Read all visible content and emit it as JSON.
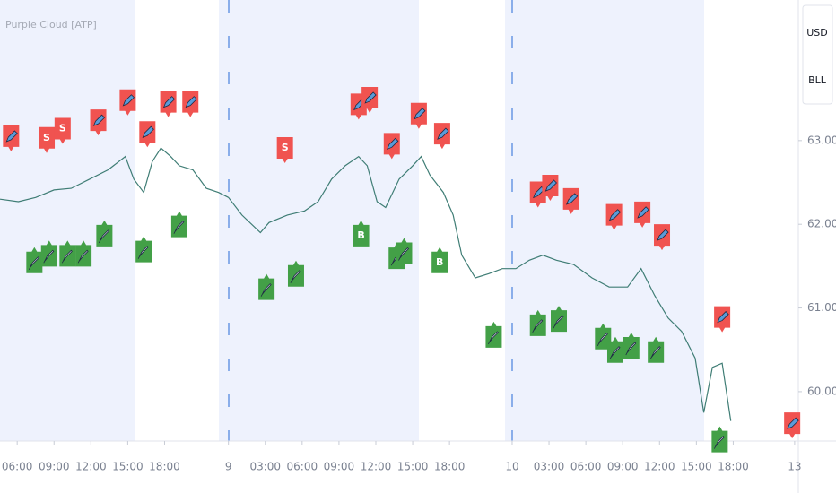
{
  "chart_data": {
    "type": "line",
    "title": "Purple Cloud [ATP]",
    "currency": "USD",
    "unit": "BLL",
    "color": "#3f7d75",
    "x": [
      4.6,
      6.1,
      7.5,
      9.0,
      10.4,
      11.9,
      13.4,
      14.8,
      15.5,
      16.3,
      17.0,
      17.7,
      18.5,
      19.2,
      20.3,
      21.4,
      22.4,
      23.2,
      24.3,
      25.8,
      26.5,
      28.0,
      29.4,
      30.5,
      31.6,
      32.7,
      33.8,
      34.5,
      35.3,
      36.0,
      37.1,
      38.2,
      38.9,
      39.6,
      40.7,
      41.5,
      42.2,
      43.3,
      44.4,
      45.5,
      46.6,
      47.7,
      48.8,
      49.9,
      51.3,
      52.8,
      54.2,
      55.7,
      56.8,
      57.9,
      59.0,
      60.1,
      61.2,
      61.9,
      62.6,
      63.4,
      64.1
    ],
    "values": [
      62.3,
      62.27,
      62.32,
      62.41,
      62.43,
      62.54,
      62.65,
      62.81,
      62.54,
      62.38,
      62.75,
      62.91,
      62.81,
      62.7,
      62.65,
      62.43,
      62.38,
      62.32,
      62.11,
      61.9,
      62.02,
      62.11,
      62.16,
      62.27,
      62.54,
      62.7,
      62.81,
      62.7,
      62.27,
      62.2,
      62.54,
      62.7,
      62.81,
      62.59,
      62.38,
      62.11,
      61.63,
      61.36,
      61.41,
      61.47,
      61.47,
      61.57,
      61.63,
      61.57,
      61.52,
      61.36,
      61.25,
      61.25,
      61.47,
      61.15,
      60.88,
      60.72,
      60.4,
      59.75,
      60.29,
      60.34,
      59.65
    ],
    "sell_signals": [
      {
        "x": 5.5,
        "y": 62.86
      },
      {
        "x": 8.4,
        "y": 62.84,
        "label": "S"
      },
      {
        "x": 9.7,
        "y": 62.95,
        "label": "S"
      },
      {
        "x": 12.6,
        "y": 63.05
      },
      {
        "x": 15.0,
        "y": 63.29
      },
      {
        "x": 16.6,
        "y": 62.91
      },
      {
        "x": 18.3,
        "y": 63.27
      },
      {
        "x": 20.1,
        "y": 63.27
      },
      {
        "x": 27.8,
        "y": 62.72,
        "label": "S"
      },
      {
        "x": 33.8,
        "y": 63.24
      },
      {
        "x": 34.7,
        "y": 63.32
      },
      {
        "x": 36.5,
        "y": 62.77
      },
      {
        "x": 38.7,
        "y": 63.13
      },
      {
        "x": 40.6,
        "y": 62.89
      },
      {
        "x": 48.4,
        "y": 62.19
      },
      {
        "x": 49.4,
        "y": 62.27
      },
      {
        "x": 51.1,
        "y": 62.11
      },
      {
        "x": 54.6,
        "y": 61.92
      },
      {
        "x": 56.9,
        "y": 61.95
      },
      {
        "x": 58.5,
        "y": 61.68
      },
      {
        "x": 63.4,
        "y": 60.7
      },
      {
        "x": 69.1,
        "y": 59.43
      }
    ],
    "buy_signals": [
      {
        "x": 7.4,
        "y": 61.79
      },
      {
        "x": 8.6,
        "y": 61.87
      },
      {
        "x": 10.1,
        "y": 61.87
      },
      {
        "x": 11.4,
        "y": 61.87
      },
      {
        "x": 13.1,
        "y": 62.11
      },
      {
        "x": 16.3,
        "y": 61.92
      },
      {
        "x": 19.2,
        "y": 62.22
      },
      {
        "x": 26.3,
        "y": 61.47
      },
      {
        "x": 28.7,
        "y": 61.63
      },
      {
        "x": 34.0,
        "y": 62.11,
        "label": "B"
      },
      {
        "x": 36.9,
        "y": 61.84
      },
      {
        "x": 37.5,
        "y": 61.9
      },
      {
        "x": 40.4,
        "y": 61.79,
        "label": "B"
      },
      {
        "x": 44.8,
        "y": 60.9
      },
      {
        "x": 48.4,
        "y": 61.04
      },
      {
        "x": 50.1,
        "y": 61.09
      },
      {
        "x": 53.7,
        "y": 60.88
      },
      {
        "x": 54.7,
        "y": 60.72
      },
      {
        "x": 56.0,
        "y": 60.77
      },
      {
        "x": 58.0,
        "y": 60.72
      },
      {
        "x": 63.2,
        "y": 59.65
      }
    ],
    "xlim": [
      4.6,
      69.6
    ],
    "xticks": [
      {
        "value": 6,
        "label": "06:00"
      },
      {
        "value": 9,
        "label": "09:00"
      },
      {
        "value": 12,
        "label": "12:00"
      },
      {
        "value": 15,
        "label": "15:00"
      },
      {
        "value": 18,
        "label": "18:00"
      },
      {
        "value": 23.2,
        "label": "9"
      },
      {
        "value": 26.2,
        "label": "03:00"
      },
      {
        "value": 29.2,
        "label": "06:00"
      },
      {
        "value": 32.2,
        "label": "09:00"
      },
      {
        "value": 35.2,
        "label": "12:00"
      },
      {
        "value": 38.2,
        "label": "15:00"
      },
      {
        "value": 41.2,
        "label": "18:00"
      },
      {
        "value": 46.3,
        "label": "10"
      },
      {
        "value": 49.3,
        "label": "03:00"
      },
      {
        "value": 52.3,
        "label": "06:00"
      },
      {
        "value": 55.3,
        "label": "09:00"
      },
      {
        "value": 58.3,
        "label": "12:00"
      },
      {
        "value": 61.3,
        "label": "15:00"
      },
      {
        "value": 64.3,
        "label": "18:00"
      },
      {
        "value": 69.3,
        "label": "13"
      }
    ],
    "ylim": [
      59.41,
      64.68
    ],
    "yticks": [
      {
        "value": 60,
        "label": "60.00"
      },
      {
        "value": 61,
        "label": "61.00"
      },
      {
        "value": 62,
        "label": "62.00"
      },
      {
        "value": 63,
        "label": "63.00"
      }
    ]
  }
}
